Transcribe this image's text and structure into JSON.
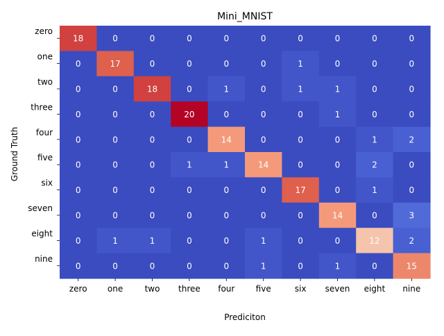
{
  "chart_data": {
    "type": "heatmap",
    "title": "Mini_MNIST",
    "xlabel": "Prediciton",
    "ylabel": "Ground Truth",
    "x_categories": [
      "zero",
      "one",
      "two",
      "three",
      "four",
      "five",
      "six",
      "seven",
      "eight",
      "nine"
    ],
    "y_categories": [
      "zero",
      "one",
      "two",
      "three",
      "four",
      "five",
      "six",
      "seven",
      "eight",
      "nine"
    ],
    "values": [
      [
        18,
        0,
        0,
        0,
        0,
        0,
        0,
        0,
        0,
        0
      ],
      [
        0,
        17,
        0,
        0,
        0,
        0,
        1,
        0,
        0,
        0
      ],
      [
        0,
        0,
        18,
        0,
        1,
        0,
        1,
        1,
        0,
        0
      ],
      [
        0,
        0,
        0,
        20,
        0,
        0,
        0,
        1,
        0,
        0
      ],
      [
        0,
        0,
        0,
        0,
        14,
        0,
        0,
        0,
        1,
        2
      ],
      [
        0,
        0,
        0,
        1,
        1,
        14,
        0,
        0,
        2,
        0
      ],
      [
        0,
        0,
        0,
        0,
        0,
        0,
        17,
        0,
        1,
        0
      ],
      [
        0,
        0,
        0,
        0,
        0,
        0,
        0,
        14,
        0,
        3
      ],
      [
        0,
        1,
        1,
        0,
        0,
        1,
        0,
        0,
        12,
        2
      ],
      [
        0,
        0,
        0,
        0,
        0,
        1,
        0,
        1,
        0,
        15
      ]
    ],
    "colormap": "coolwarm",
    "colorbar": false,
    "grid": false,
    "annotation_color": "#ffffff"
  }
}
